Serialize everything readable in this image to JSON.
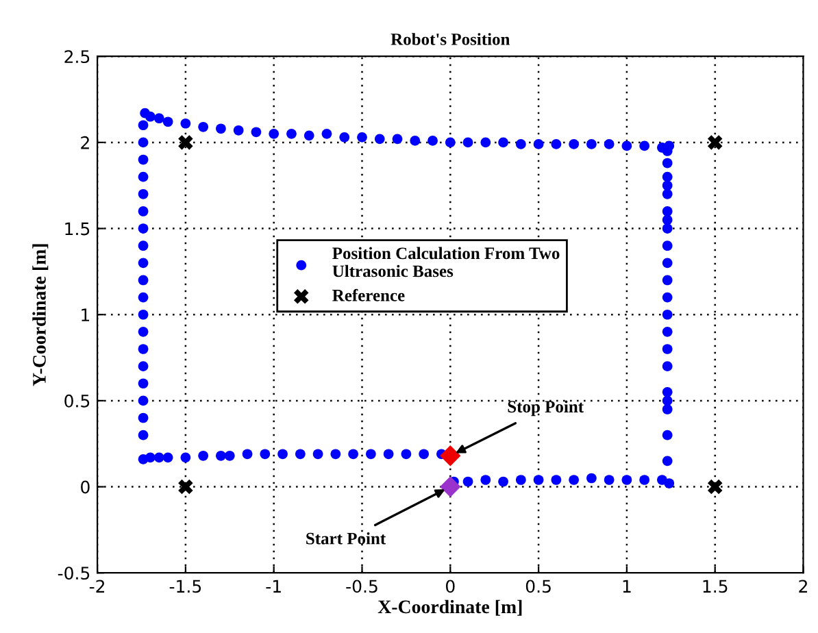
{
  "chart_data": {
    "type": "scatter",
    "title": "Robot's Position",
    "xlabel": "X-Coordinate [m]",
    "ylabel": "Y-Coordinate [m]",
    "xlim": [
      -2,
      2
    ],
    "ylim": [
      -0.5,
      2.5
    ],
    "xticks": [
      -2,
      -1.5,
      -1,
      -0.5,
      0,
      0.5,
      1,
      1.5,
      2
    ],
    "yticks": [
      -0.5,
      0,
      0.5,
      1,
      1.5,
      2,
      2.5
    ],
    "grid": true,
    "legend": "center",
    "series": [
      {
        "name": "Position Calculation From Two Ultrasonic Bases",
        "color": "#0000ff",
        "marker": "circle",
        "x": [
          0.02,
          0.1,
          0.2,
          0.3,
          0.4,
          0.5,
          0.6,
          0.7,
          0.8,
          0.9,
          1.0,
          1.1,
          1.2,
          1.24,
          1.23,
          1.23,
          1.23,
          1.23,
          1.23,
          1.23,
          1.23,
          1.23,
          1.23,
          1.23,
          1.23,
          1.23,
          1.23,
          1.23,
          1.23,
          1.23,
          1.23,
          1.23,
          1.23,
          1.23,
          1.23,
          1.24,
          1.2,
          1.1,
          1.0,
          0.9,
          0.8,
          0.7,
          0.6,
          0.5,
          0.4,
          0.3,
          0.2,
          0.1,
          0.0,
          -0.1,
          -0.2,
          -0.3,
          -0.4,
          -0.5,
          -0.6,
          -0.7,
          -0.8,
          -0.9,
          -1.0,
          -1.1,
          -1.2,
          -1.3,
          -1.4,
          -1.5,
          -1.6,
          -1.65,
          -1.7,
          -1.73,
          -1.74,
          -1.74,
          -1.74,
          -1.74,
          -1.74,
          -1.74,
          -1.74,
          -1.74,
          -1.74,
          -1.74,
          -1.74,
          -1.74,
          -1.74,
          -1.74,
          -1.74,
          -1.74,
          -1.74,
          -1.74,
          -1.74,
          -1.74,
          -1.7,
          -1.65,
          -1.6,
          -1.5,
          -1.4,
          -1.3,
          -1.25,
          -1.15,
          -1.05,
          -0.95,
          -0.85,
          -0.75,
          -0.65,
          -0.55,
          -0.45,
          -0.35,
          -0.25,
          -0.15,
          -0.05
        ],
        "values": [
          0.03,
          0.03,
          0.04,
          0.03,
          0.04,
          0.04,
          0.04,
          0.04,
          0.05,
          0.04,
          0.04,
          0.04,
          0.04,
          0.02,
          0.15,
          0.3,
          0.45,
          0.5,
          0.55,
          0.7,
          0.8,
          0.9,
          1.0,
          1.1,
          1.2,
          1.3,
          1.4,
          1.5,
          1.55,
          1.6,
          1.7,
          1.75,
          1.8,
          1.88,
          1.95,
          1.98,
          1.97,
          1.98,
          1.98,
          1.99,
          1.99,
          1.99,
          1.99,
          1.99,
          1.99,
          2.0,
          2.0,
          2.0,
          2.0,
          2.01,
          2.01,
          2.02,
          2.02,
          2.03,
          2.03,
          2.05,
          2.04,
          2.05,
          2.05,
          2.06,
          2.07,
          2.08,
          2.09,
          2.11,
          2.12,
          2.14,
          2.15,
          2.17,
          2.1,
          2.0,
          1.9,
          1.8,
          1.7,
          1.6,
          1.5,
          1.4,
          1.3,
          1.2,
          1.1,
          1.0,
          0.9,
          0.8,
          0.7,
          0.6,
          0.5,
          0.4,
          0.3,
          0.16,
          0.17,
          0.17,
          0.17,
          0.17,
          0.18,
          0.18,
          0.18,
          0.19,
          0.19,
          0.19,
          0.19,
          0.19,
          0.19,
          0.19,
          0.19,
          0.19,
          0.19,
          0.19,
          0.19
        ]
      },
      {
        "name": "Reference",
        "color": "#000000",
        "marker": "cross",
        "x": [
          -1.5,
          1.5,
          -1.5,
          1.5
        ],
        "values": [
          2,
          2,
          0,
          0
        ]
      },
      {
        "color": "#ee0000",
        "marker": "diamond",
        "x": [
          0
        ],
        "values": [
          0.18
        ]
      },
      {
        "color": "#9933cc",
        "marker": "diamond",
        "x": [
          0
        ],
        "values": [
          0
        ]
      }
    ],
    "annotations": [
      {
        "text": "Stop Point",
        "x": 0,
        "y": 0.18
      },
      {
        "text": "Start Point",
        "x": 0,
        "y": 0
      }
    ]
  }
}
